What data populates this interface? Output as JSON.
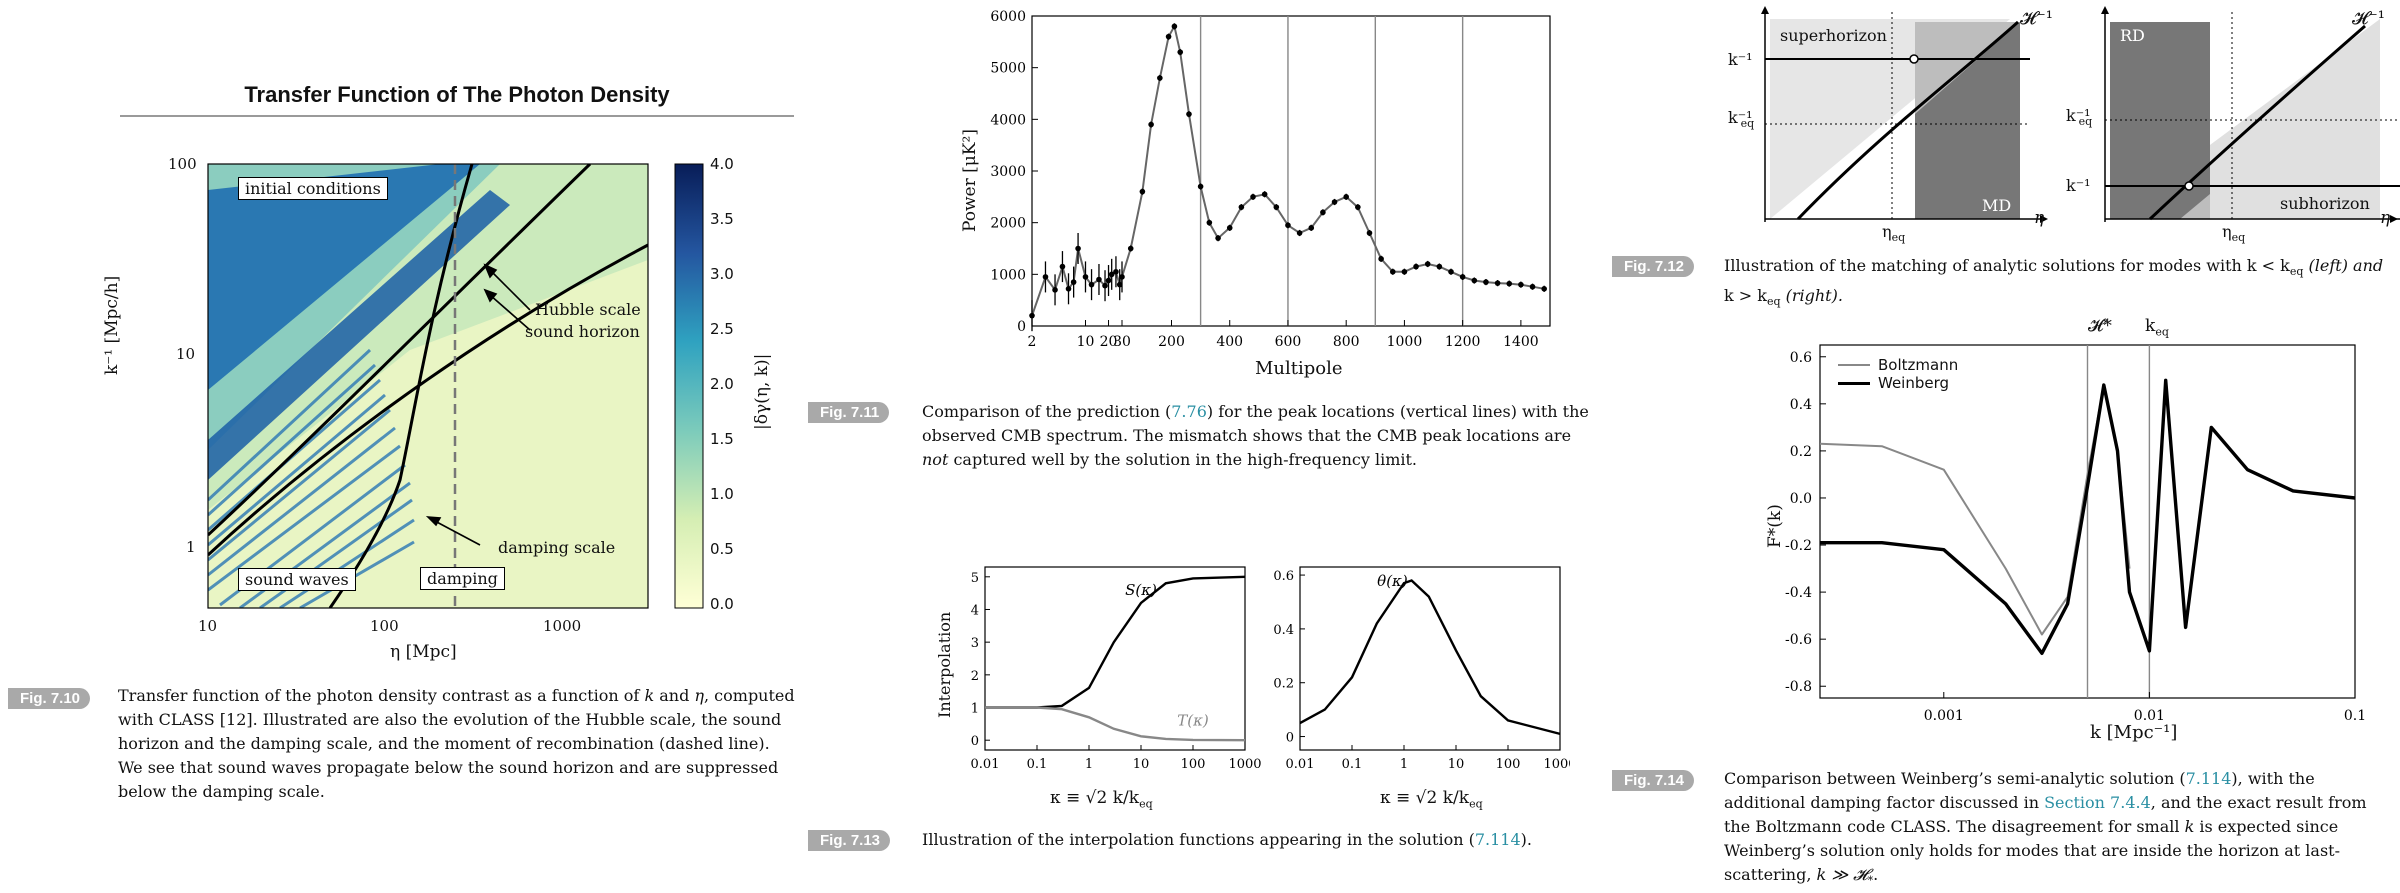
{
  "fig710": {
    "title": "Transfer Function of The Photon Density",
    "badge": "Fig. 7.10",
    "caption_parts": [
      "Transfer function of the photon density contrast as a function of ",
      "k",
      " and ",
      "η",
      ", computed with CLASS [12]. Illustrated are also the evolution of the Hubble scale, the sound horizon and the damping scale, and the moment of recombination (dashed line). We see that sound waves propagate below the sound horizon and are suppressed below the damping scale."
    ],
    "xlabel": "η [Mpc]",
    "ylabel": "k⁻¹ [Mpc/h]",
    "colorbar_label": "|δγ(η, k)|",
    "xticks": [
      "10",
      "100",
      "1000"
    ],
    "yticks": [
      "1",
      "10",
      "100"
    ],
    "cbar_ticks": [
      "0.0",
      "0.5",
      "1.0",
      "1.5",
      "2.0",
      "2.5",
      "3.0",
      "3.5",
      "4.0"
    ],
    "labels": {
      "initial": "initial conditions",
      "sound_waves": "sound waves",
      "damping": "damping",
      "hubble": "Hubble scale",
      "sound_horizon": "sound horizon",
      "damping_scale": "damping scale"
    }
  },
  "fig711": {
    "badge": "Fig. 7.11",
    "caption_a": "Comparison of the prediction (",
    "caption_ref": "7.76",
    "caption_b": ") for the peak locations (vertical lines) with the observed CMB spectrum. The mismatch shows that the CMB peak locations are ",
    "caption_em": "not",
    "caption_c": " captured well by the solution in the high-frequency limit.",
    "xlabel": "Multipole",
    "ylabel": "Power [μK²]"
  },
  "fig712": {
    "badge": "Fig. 7.12",
    "caption": "Illustration of the matching of analytic solutions for modes with k < k_eq (left) and k > k_eq (right).",
    "caption_l1": "Illustration of the matching of analytic solutions for modes with k < k",
    "caption_l1b": "eq",
    "caption_l1c": " (left) and",
    "caption_l2": "k > k",
    "caption_l2b": "eq",
    "caption_l2c": " (right).",
    "left": {
      "superhorizon": "superhorizon",
      "md": "MD",
      "hubble": "𝓗⁻¹",
      "kinv": "k⁻¹",
      "keqinv": "k⁻¹",
      "keq_sub": "eq",
      "eta_axis": "η",
      "eta_eq": "η",
      "eta_eq_sub": "eq"
    },
    "right": {
      "rd": "RD",
      "subhorizon": "subhorizon",
      "hubble": "𝓗⁻¹",
      "kinv": "k⁻¹",
      "keqinv": "k⁻¹",
      "keq_sub": "eq",
      "eta_axis": "η",
      "eta_eq": "η",
      "eta_eq_sub": "eq"
    }
  },
  "fig713": {
    "badge": "Fig. 7.13",
    "caption_a": "Illustration of the interpolation functions appearing in the solution (",
    "caption_ref": "7.114",
    "caption_b": ").",
    "left_ylabel": "Interpolation",
    "xlabel": "κ ≡ √2 k/k",
    "xlabel_sub": "eq",
    "S_label": "S(κ)",
    "T_label": "T(κ)",
    "theta_label": "θ(κ)"
  },
  "fig714": {
    "badge": "Fig. 7.14",
    "caption_a": "Comparison between Weinberg’s semi-analytic solution (",
    "caption_ref1": "7.114",
    "caption_b": "), with the additional damping factor discussed in ",
    "caption_ref2": "Section 7.4.4",
    "caption_c": ", and the exact result from the Boltzmann code CLASS. The disagreement for small ",
    "caption_k": "k",
    "caption_d": " is expected since Weinberg’s solution only holds for modes that are inside the horizon at last-scattering, ",
    "caption_e": "k ≫ 𝓗",
    "caption_e_sub": "*",
    "caption_f": ".",
    "xlabel": "k [Mpc⁻¹]",
    "ylabel": "F*(k)",
    "top_H": "𝓗*",
    "top_keq": "k",
    "top_keq_sub": "eq",
    "legend": [
      "Boltzmann",
      "Weinberg"
    ]
  },
  "chart_data": [
    {
      "type": "heatmap",
      "title": "Transfer Function of The Photon Density",
      "xlabel": "η [Mpc]",
      "ylabel": "k⁻¹ [Mpc/h]",
      "xscale": "log",
      "yscale": "log",
      "xlim": [
        10,
        3000
      ],
      "ylim": [
        0.5,
        100
      ],
      "colorbar": {
        "label": "|δγ(η, k)|",
        "range": [
          0.0,
          4.0
        ]
      }
    },
    {
      "type": "scatter",
      "xlabel": "Multipole",
      "ylabel": "Power [μK²]",
      "ylim": [
        0,
        6000
      ],
      "xticks": [
        "2",
        "10",
        "20",
        "30",
        "200",
        "400",
        "600",
        "800",
        "1000",
        "1200",
        "1400"
      ],
      "yticks": [
        0,
        1000,
        2000,
        3000,
        4000,
        5000,
        6000
      ],
      "peak_lines": [
        300,
        600,
        900,
        1200
      ],
      "points": [
        [
          2,
          200
        ],
        [
          3,
          950
        ],
        [
          4,
          700
        ],
        [
          5,
          1150
        ],
        [
          6,
          720
        ],
        [
          7,
          850
        ],
        [
          8,
          1500
        ],
        [
          10,
          950
        ],
        [
          12,
          800
        ],
        [
          15,
          900
        ],
        [
          18,
          780
        ],
        [
          20,
          880
        ],
        [
          22,
          1000
        ],
        [
          25,
          1050
        ],
        [
          28,
          800
        ],
        [
          30,
          950
        ],
        [
          60,
          1500
        ],
        [
          100,
          2600
        ],
        [
          130,
          3900
        ],
        [
          160,
          4800
        ],
        [
          190,
          5600
        ],
        [
          210,
          5800
        ],
        [
          230,
          5300
        ],
        [
          260,
          4100
        ],
        [
          300,
          2700
        ],
        [
          330,
          2000
        ],
        [
          360,
          1700
        ],
        [
          400,
          1900
        ],
        [
          440,
          2300
        ],
        [
          480,
          2500
        ],
        [
          520,
          2550
        ],
        [
          560,
          2300
        ],
        [
          600,
          1950
        ],
        [
          640,
          1800
        ],
        [
          680,
          1900
        ],
        [
          720,
          2200
        ],
        [
          760,
          2400
        ],
        [
          800,
          2500
        ],
        [
          840,
          2300
        ],
        [
          880,
          1800
        ],
        [
          920,
          1300
        ],
        [
          960,
          1050
        ],
        [
          1000,
          1050
        ],
        [
          1040,
          1150
        ],
        [
          1080,
          1200
        ],
        [
          1120,
          1150
        ],
        [
          1160,
          1050
        ],
        [
          1200,
          950
        ],
        [
          1240,
          880
        ],
        [
          1280,
          850
        ],
        [
          1320,
          830
        ],
        [
          1360,
          820
        ],
        [
          1400,
          800
        ],
        [
          1440,
          760
        ],
        [
          1480,
          720
        ]
      ]
    },
    {
      "type": "line",
      "xlabel": "κ ≡ √2 k/k_eq",
      "ylabel": "Interpolation",
      "xscale": "log",
      "xticks": [
        "0.01",
        "0.1",
        "1",
        "10",
        "100",
        "1000"
      ],
      "yticks": [
        0,
        1,
        2,
        3,
        4,
        5
      ],
      "series": [
        {
          "name": "S(κ)",
          "x": [
            0.01,
            0.1,
            0.3,
            1,
            3,
            10,
            30,
            100,
            1000
          ],
          "values": [
            1.0,
            1.0,
            1.05,
            1.6,
            3.0,
            4.2,
            4.8,
            4.95,
            5.0
          ]
        },
        {
          "name": "T(κ)",
          "x": [
            0.01,
            0.1,
            0.3,
            1,
            3,
            10,
            30,
            100,
            1000
          ],
          "values": [
            1.0,
            1.0,
            0.95,
            0.7,
            0.35,
            0.12,
            0.04,
            0.01,
            0.0
          ]
        }
      ]
    },
    {
      "type": "line",
      "xlabel": "κ ≡ √2 k/k_eq",
      "xscale": "log",
      "xticks": [
        "0.01",
        "0.1",
        "1",
        "10",
        "100",
        "1000"
      ],
      "yticks": [
        0,
        0.2,
        0.4,
        0.6
      ],
      "series": [
        {
          "name": "θ(κ)",
          "x": [
            0.01,
            0.03,
            0.1,
            0.3,
            1,
            1.4,
            3,
            10,
            30,
            100,
            1000
          ],
          "values": [
            0.05,
            0.1,
            0.22,
            0.42,
            0.57,
            0.58,
            0.52,
            0.32,
            0.15,
            0.06,
            0.01
          ]
        }
      ]
    },
    {
      "type": "line",
      "xlabel": "k [Mpc⁻¹]",
      "ylabel": "F*(k)",
      "xscale": "log",
      "xticks": [
        "0.001",
        "0.01",
        "0.1"
      ],
      "yticks": [
        -0.8,
        -0.6,
        -0.4,
        -0.2,
        0.0,
        0.2,
        0.4,
        0.6
      ],
      "ylim": [
        -0.85,
        0.65
      ],
      "vlines": [
        0.005,
        0.01
      ],
      "series": [
        {
          "name": "Boltzmann",
          "x": [
            0.00025,
            0.0005,
            0.001,
            0.002,
            0.003,
            0.004,
            0.005,
            0.006,
            0.007,
            0.008
          ],
          "values": [
            0.23,
            0.22,
            0.12,
            -0.3,
            -0.58,
            -0.42,
            0.1,
            0.48,
            0.2,
            -0.3
          ]
        },
        {
          "name": "Weinberg",
          "x": [
            0.00025,
            0.0005,
            0.001,
            0.002,
            0.003,
            0.004,
            0.005,
            0.006,
            0.007,
            0.008,
            0.01,
            0.012,
            0.015,
            0.02,
            0.03,
            0.05,
            0.1
          ],
          "values": [
            -0.19,
            -0.19,
            -0.22,
            -0.45,
            -0.66,
            -0.45,
            0.05,
            0.48,
            0.2,
            -0.4,
            -0.65,
            0.5,
            -0.55,
            0.3,
            0.12,
            0.03,
            0.0
          ]
        }
      ]
    }
  ]
}
